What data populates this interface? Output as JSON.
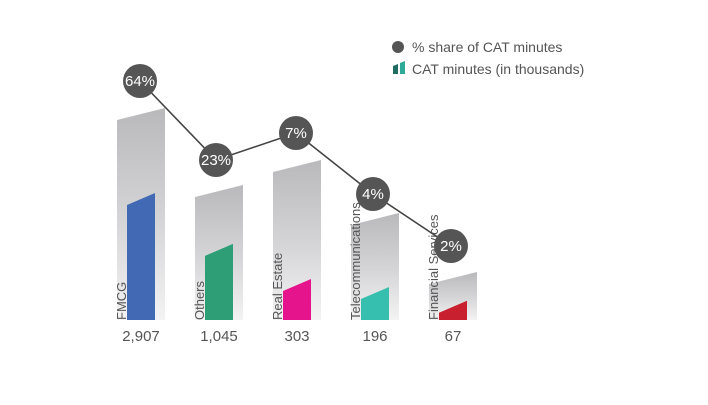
{
  "chart_data": {
    "type": "bar",
    "title": "",
    "xlabel": "",
    "ylabel": "",
    "categories": [
      "FMCG",
      "Others",
      "Real Estate",
      "Telecommunications",
      "Financial Services"
    ],
    "series": [
      {
        "name": "CAT minutes (in thousands)",
        "type": "bar",
        "values": [
          2907,
          1045,
          303,
          196,
          67
        ],
        "value_labels": [
          "2,907",
          "1,045",
          "303",
          "196",
          "67"
        ]
      },
      {
        "name": "% share of CAT minutes",
        "type": "line",
        "values": [
          64,
          23,
          7,
          4,
          2
        ],
        "value_labels": [
          "64%",
          "23%",
          "7%",
          "4%",
          "2%"
        ]
      }
    ],
    "legend": {
      "position": "top-right",
      "items": [
        {
          "name": "% share of CAT minutes",
          "symbol": "circle"
        },
        {
          "name": "CAT minutes (in thousands)",
          "symbol": "bars"
        }
      ]
    },
    "colors": {
      "bars": [
        "#4169b4",
        "#2e9e77",
        "#e6148c",
        "#36bfae",
        "#c8202f"
      ],
      "line": "#444444",
      "marker": "#555555",
      "background_column": "#c9c9cb",
      "legend_bars": [
        "#1f6e66",
        "#2eaa98"
      ]
    },
    "grid": false
  }
}
